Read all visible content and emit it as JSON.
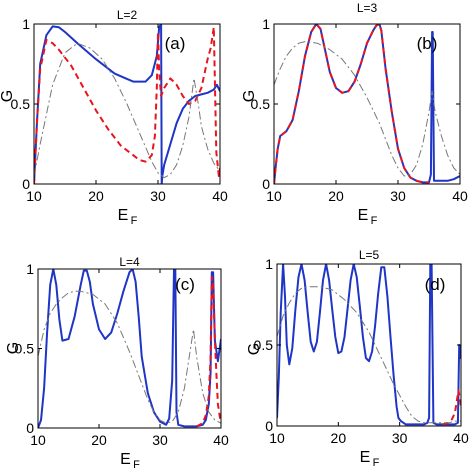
{
  "chart_data": [
    {
      "type": "line",
      "title": "L=2",
      "panel_label": "(a)",
      "xlabel": "E",
      "xlabel_sub": "F",
      "ylabel": "G",
      "xlim": [
        10,
        40
      ],
      "ylim": [
        0,
        1
      ],
      "xticks": [
        "10",
        "20",
        "30",
        "40"
      ],
      "yticks": [
        "0",
        "0.5",
        "1"
      ],
      "series": [
        {
          "style": "solid",
          "color": "#1f35c6",
          "x": [
            10,
            10.5,
            11,
            12,
            13,
            14,
            15,
            17,
            20,
            23,
            26,
            28,
            29,
            29.8,
            30.2,
            30.5,
            30.6,
            30.7,
            31,
            32,
            33,
            34,
            35,
            36,
            37,
            38,
            39,
            39.5,
            40
          ],
          "y": [
            0,
            0.4,
            0.75,
            0.93,
            0.985,
            0.98,
            0.95,
            0.88,
            0.78,
            0.69,
            0.64,
            0.64,
            0.68,
            0.8,
            0.98,
            1.0,
            0.0,
            0.05,
            0.12,
            0.25,
            0.38,
            0.47,
            0.52,
            0.55,
            0.56,
            0.57,
            0.59,
            0.62,
            0.58
          ]
        },
        {
          "style": "dashed",
          "color": "#e8141e",
          "x": [
            10,
            10.5,
            11,
            12,
            13,
            14,
            16,
            18,
            20,
            22,
            24,
            26,
            27,
            28,
            29,
            29.5,
            29.8,
            30,
            30.2,
            30.5,
            31,
            32,
            33,
            34,
            35,
            36,
            37,
            38,
            38.5,
            39,
            39.4,
            39.8,
            40
          ],
          "y": [
            0,
            0.4,
            0.72,
            0.9,
            0.88,
            0.84,
            0.74,
            0.6,
            0.46,
            0.34,
            0.24,
            0.18,
            0.15,
            0.14,
            0.18,
            0.3,
            0.6,
            0.95,
            0.7,
            0.55,
            0.6,
            0.66,
            0.62,
            0.55,
            0.5,
            0.52,
            0.6,
            0.78,
            0.85,
            0.98,
            0.2,
            0.05,
            0.1
          ]
        },
        {
          "style": "dashdot",
          "color": "#777777",
          "x": [
            10,
            11,
            13,
            15,
            17,
            19,
            21,
            23,
            25,
            27,
            29,
            30,
            31,
            32,
            33,
            34,
            35,
            35.8,
            36.5,
            37,
            38,
            39,
            40
          ],
          "y": [
            0.05,
            0.25,
            0.62,
            0.82,
            0.88,
            0.85,
            0.78,
            0.66,
            0.5,
            0.32,
            0.14,
            0.07,
            0.04,
            0.06,
            0.12,
            0.24,
            0.42,
            0.66,
            0.5,
            0.36,
            0.22,
            0.13,
            0.08
          ]
        }
      ]
    },
    {
      "type": "line",
      "title": "L=3",
      "panel_label": "(b)",
      "xlabel": "E",
      "xlabel_sub": "F",
      "ylabel": "G",
      "xlim": [
        10,
        40
      ],
      "ylim": [
        0,
        1
      ],
      "xticks": [
        "10",
        "20",
        "30",
        "40"
      ],
      "yticks": [
        "0",
        "0.5",
        "1"
      ],
      "series": [
        {
          "style": "solid",
          "color": "#1f35c6",
          "x": [
            10,
            10.3,
            10.6,
            11,
            12,
            13,
            14,
            15,
            16,
            16.8,
            17.5,
            18,
            19,
            20,
            21,
            22,
            23,
            24,
            25,
            26,
            26.5,
            27,
            27.3,
            28,
            29,
            30,
            31,
            32,
            33,
            34,
            35,
            35.3,
            35.5,
            35.6,
            35.8,
            36,
            37,
            38,
            39,
            40
          ],
          "y": [
            0,
            0.12,
            0.22,
            0.3,
            0.33,
            0.4,
            0.58,
            0.8,
            0.95,
            1.0,
            0.97,
            0.88,
            0.7,
            0.6,
            0.57,
            0.58,
            0.64,
            0.75,
            0.88,
            0.96,
            0.99,
            1.0,
            0.96,
            0.72,
            0.45,
            0.22,
            0.1,
            0.04,
            0.02,
            0.01,
            0.01,
            0.06,
            0.95,
            0.95,
            0.02,
            0.02,
            0.02,
            0.02,
            0.03,
            0.05
          ]
        },
        {
          "style": "dashed",
          "color": "#e8141e",
          "x": [
            10,
            10.3,
            10.6,
            11,
            12,
            13,
            14,
            15,
            16,
            16.8,
            17.5,
            18,
            19,
            20,
            21,
            22,
            23,
            24,
            25,
            26,
            26.5,
            27,
            27.3,
            28,
            29,
            30,
            31,
            32,
            33,
            34,
            35
          ],
          "y": [
            0,
            0.12,
            0.22,
            0.3,
            0.33,
            0.4,
            0.58,
            0.8,
            0.95,
            1.0,
            0.97,
            0.88,
            0.7,
            0.6,
            0.57,
            0.58,
            0.64,
            0.75,
            0.88,
            0.96,
            0.99,
            1.0,
            0.96,
            0.72,
            0.45,
            0.22,
            0.1,
            0.04,
            0.02,
            0.01,
            0.01
          ]
        },
        {
          "style": "dashdot",
          "color": "#777777",
          "x": [
            10,
            11,
            12,
            13,
            14,
            15,
            17,
            19,
            21,
            23,
            25,
            27,
            28,
            29,
            30,
            31,
            32,
            33,
            34,
            35,
            35.5,
            36,
            37,
            38,
            39,
            40
          ],
          "y": [
            0.62,
            0.72,
            0.8,
            0.85,
            0.88,
            0.89,
            0.88,
            0.84,
            0.78,
            0.68,
            0.54,
            0.38,
            0.28,
            0.18,
            0.1,
            0.05,
            0.06,
            0.12,
            0.25,
            0.45,
            0.58,
            0.45,
            0.3,
            0.18,
            0.1,
            0.06
          ]
        }
      ]
    },
    {
      "type": "line",
      "title": "L=4",
      "panel_label": "(c)",
      "xlabel": "E",
      "xlabel_sub": "F",
      "ylabel": "G",
      "xlim": [
        10,
        40
      ],
      "ylim": [
        0,
        1
      ],
      "xticks": [
        "10",
        "20",
        "30",
        "40"
      ],
      "yticks": [
        "0",
        "0.5",
        "1"
      ],
      "series": [
        {
          "style": "solid",
          "color": "#1f35c6",
          "x": [
            10,
            10.5,
            11,
            11.5,
            12,
            12.5,
            13,
            13.5,
            14,
            15,
            16,
            17,
            17.5,
            18,
            18.5,
            19,
            20,
            21,
            22,
            23,
            24,
            25,
            25.5,
            26,
            26.5,
            27,
            28,
            29,
            30,
            31,
            31.5,
            32,
            32.3,
            32.5,
            32.7,
            33,
            34,
            35,
            36,
            37,
            37.5,
            38,
            38.3,
            38.5,
            38.7,
            39,
            39.5,
            40
          ],
          "y": [
            0,
            0.05,
            0.25,
            0.6,
            0.9,
            1.0,
            0.9,
            0.68,
            0.55,
            0.56,
            0.7,
            0.9,
            0.99,
            0.99,
            0.92,
            0.78,
            0.62,
            0.56,
            0.6,
            0.72,
            0.86,
            0.98,
            1.0,
            0.92,
            0.7,
            0.45,
            0.22,
            0.1,
            0.04,
            0.02,
            0.06,
            0.3,
            1.0,
            1.0,
            0.1,
            0.02,
            0.01,
            0.01,
            0.01,
            0.02,
            0.05,
            0.15,
            0.35,
            0.98,
            0.98,
            0.55,
            0.42,
            0.56
          ]
        },
        {
          "style": "dashed",
          "color": "#e8141e",
          "x": [
            36,
            37,
            37.5,
            38,
            38.3,
            38.5,
            38.7,
            39,
            39.3,
            39.5,
            39.8,
            40
          ],
          "y": [
            0.01,
            0.03,
            0.08,
            0.2,
            0.45,
            0.95,
            0.9,
            0.55,
            0.3,
            0.15,
            0.07,
            0.03
          ]
        },
        {
          "style": "dashdot",
          "color": "#777777",
          "x": [
            10,
            11,
            12,
            13,
            14,
            15,
            16,
            17,
            19,
            21,
            23,
            25,
            27,
            28,
            29,
            30,
            31,
            32,
            33,
            34,
            35,
            35.5,
            36,
            37,
            38,
            39,
            40
          ],
          "y": [
            0.45,
            0.62,
            0.72,
            0.78,
            0.82,
            0.85,
            0.86,
            0.86,
            0.84,
            0.78,
            0.66,
            0.48,
            0.28,
            0.18,
            0.1,
            0.05,
            0.03,
            0.04,
            0.1,
            0.25,
            0.5,
            0.62,
            0.45,
            0.22,
            0.1,
            0.05,
            0.03
          ]
        }
      ]
    },
    {
      "type": "line",
      "title": "L=5",
      "panel_label": "(d)",
      "xlabel": "E",
      "xlabel_sub": "F",
      "ylabel": "G",
      "xlim": [
        10,
        40
      ],
      "ylim": [
        0,
        1
      ],
      "xticks": [
        "10",
        "20",
        "30",
        "40"
      ],
      "yticks": [
        "0",
        "0.5",
        "1"
      ],
      "series": [
        {
          "style": "solid",
          "color": "#1f35c6",
          "x": [
            10,
            10.3,
            10.6,
            11,
            11.3,
            11.6,
            12,
            12.5,
            13,
            13.5,
            14,
            14.5,
            15,
            15.5,
            16,
            16.5,
            17,
            17.5,
            18,
            18.5,
            19,
            19.5,
            20,
            20.5,
            21,
            21.5,
            22,
            22.5,
            23,
            23.5,
            24,
            24.5,
            25,
            25.5,
            26,
            26.5,
            27,
            27.5,
            28,
            28.5,
            29,
            29.5,
            29.8,
            30.2,
            31,
            32,
            33,
            34,
            34.5,
            34.8,
            35,
            35.2,
            35.5,
            36,
            37,
            38,
            39,
            39.5,
            39.7,
            39.9,
            40
          ],
          "y": [
            0.05,
            0.3,
            0.7,
            1.0,
            0.8,
            0.5,
            0.38,
            0.48,
            0.72,
            0.92,
            1.0,
            0.9,
            0.7,
            0.52,
            0.46,
            0.52,
            0.7,
            0.9,
            1.0,
            0.9,
            0.72,
            0.55,
            0.45,
            0.46,
            0.55,
            0.72,
            0.9,
            1.0,
            0.92,
            0.74,
            0.55,
            0.42,
            0.4,
            0.46,
            0.62,
            0.82,
            0.98,
            0.98,
            0.8,
            0.55,
            0.32,
            0.12,
            0.05,
            0.03,
            0.01,
            0.01,
            0.01,
            0.01,
            0.02,
            0.05,
            1.0,
            1.0,
            0.02,
            0.01,
            0.01,
            0.01,
            0.01,
            0.02,
            0.5,
            0.42,
            0.5
          ]
        },
        {
          "style": "dashed",
          "color": "#e8141e",
          "x": [
            37,
            38,
            38.5,
            39,
            39.3,
            39.6,
            40
          ],
          "y": [
            0.01,
            0.02,
            0.04,
            0.08,
            0.15,
            0.22,
            0.12
          ]
        },
        {
          "style": "dashdot",
          "color": "#777777",
          "x": [
            10,
            11,
            12,
            13,
            14,
            15,
            16,
            17,
            19,
            21,
            23,
            25,
            27,
            29,
            31,
            32,
            33,
            34,
            35,
            36,
            37,
            38,
            39,
            40
          ],
          "y": [
            0.55,
            0.68,
            0.76,
            0.82,
            0.85,
            0.86,
            0.86,
            0.86,
            0.84,
            0.78,
            0.7,
            0.58,
            0.42,
            0.26,
            0.12,
            0.06,
            0.03,
            0.02,
            0.02,
            0.02,
            0.02,
            0.02,
            0.03,
            0.03
          ]
        }
      ]
    }
  ]
}
